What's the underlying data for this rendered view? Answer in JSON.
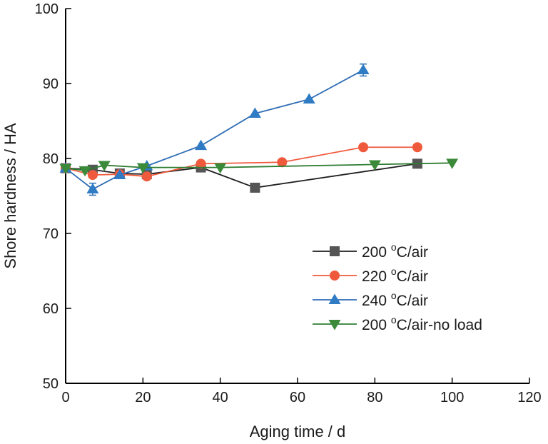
{
  "chart_data": {
    "type": "line",
    "xlabel": "Aging time / d",
    "ylabel": "Shore hardness / HA",
    "xlim": [
      0,
      120
    ],
    "ylim": [
      50,
      100
    ],
    "x_ticks": [
      0,
      20,
      40,
      60,
      80,
      100,
      120
    ],
    "y_ticks": [
      50,
      60,
      70,
      80,
      90,
      100
    ],
    "grid": false,
    "legend_position": "bottom-right",
    "series": [
      {
        "name": "200 °C/air",
        "label_parts": [
          "200 ",
          "o",
          "C/air"
        ],
        "color": "#1f1f1f",
        "marker_color": "#555555",
        "marker": "square",
        "x": [
          0,
          7,
          14,
          21,
          35,
          49,
          91
        ],
        "y": [
          78.7,
          78.5,
          78.0,
          77.9,
          78.8,
          76.1,
          79.3
        ]
      },
      {
        "name": "220 °C/air",
        "label_parts": [
          "220 ",
          "o",
          "C/air"
        ],
        "color": "#f05a3c",
        "marker_color": "#f05a3c",
        "marker": "circle",
        "x": [
          0,
          7,
          14,
          21,
          35,
          56,
          77,
          91
        ],
        "y": [
          78.7,
          77.8,
          77.9,
          77.6,
          79.3,
          79.5,
          81.5,
          81.5
        ]
      },
      {
        "name": "240 °C/air",
        "label_parts": [
          "240 ",
          "o",
          "C/air"
        ],
        "color": "#2f6db4",
        "marker_color": "#2f7bc4",
        "marker": "triangle-up",
        "x": [
          0,
          7,
          14,
          21,
          35,
          49,
          63,
          77
        ],
        "y": [
          78.7,
          75.9,
          77.8,
          79.0,
          81.7,
          86.0,
          87.9,
          91.8
        ],
        "error": [
          0,
          0.8,
          0,
          0,
          0,
          0,
          0,
          0.8
        ]
      },
      {
        "name": "200 °C/air-no load",
        "label_parts": [
          "200 ",
          "o",
          "C/air-no load"
        ],
        "color": "#2e7d32",
        "marker_color": "#3a8a3a",
        "marker": "triangle-down",
        "x": [
          0,
          5,
          10,
          20,
          40,
          80,
          100
        ],
        "y": [
          78.7,
          78.4,
          79.1,
          78.8,
          78.8,
          79.2,
          79.4
        ]
      }
    ]
  }
}
